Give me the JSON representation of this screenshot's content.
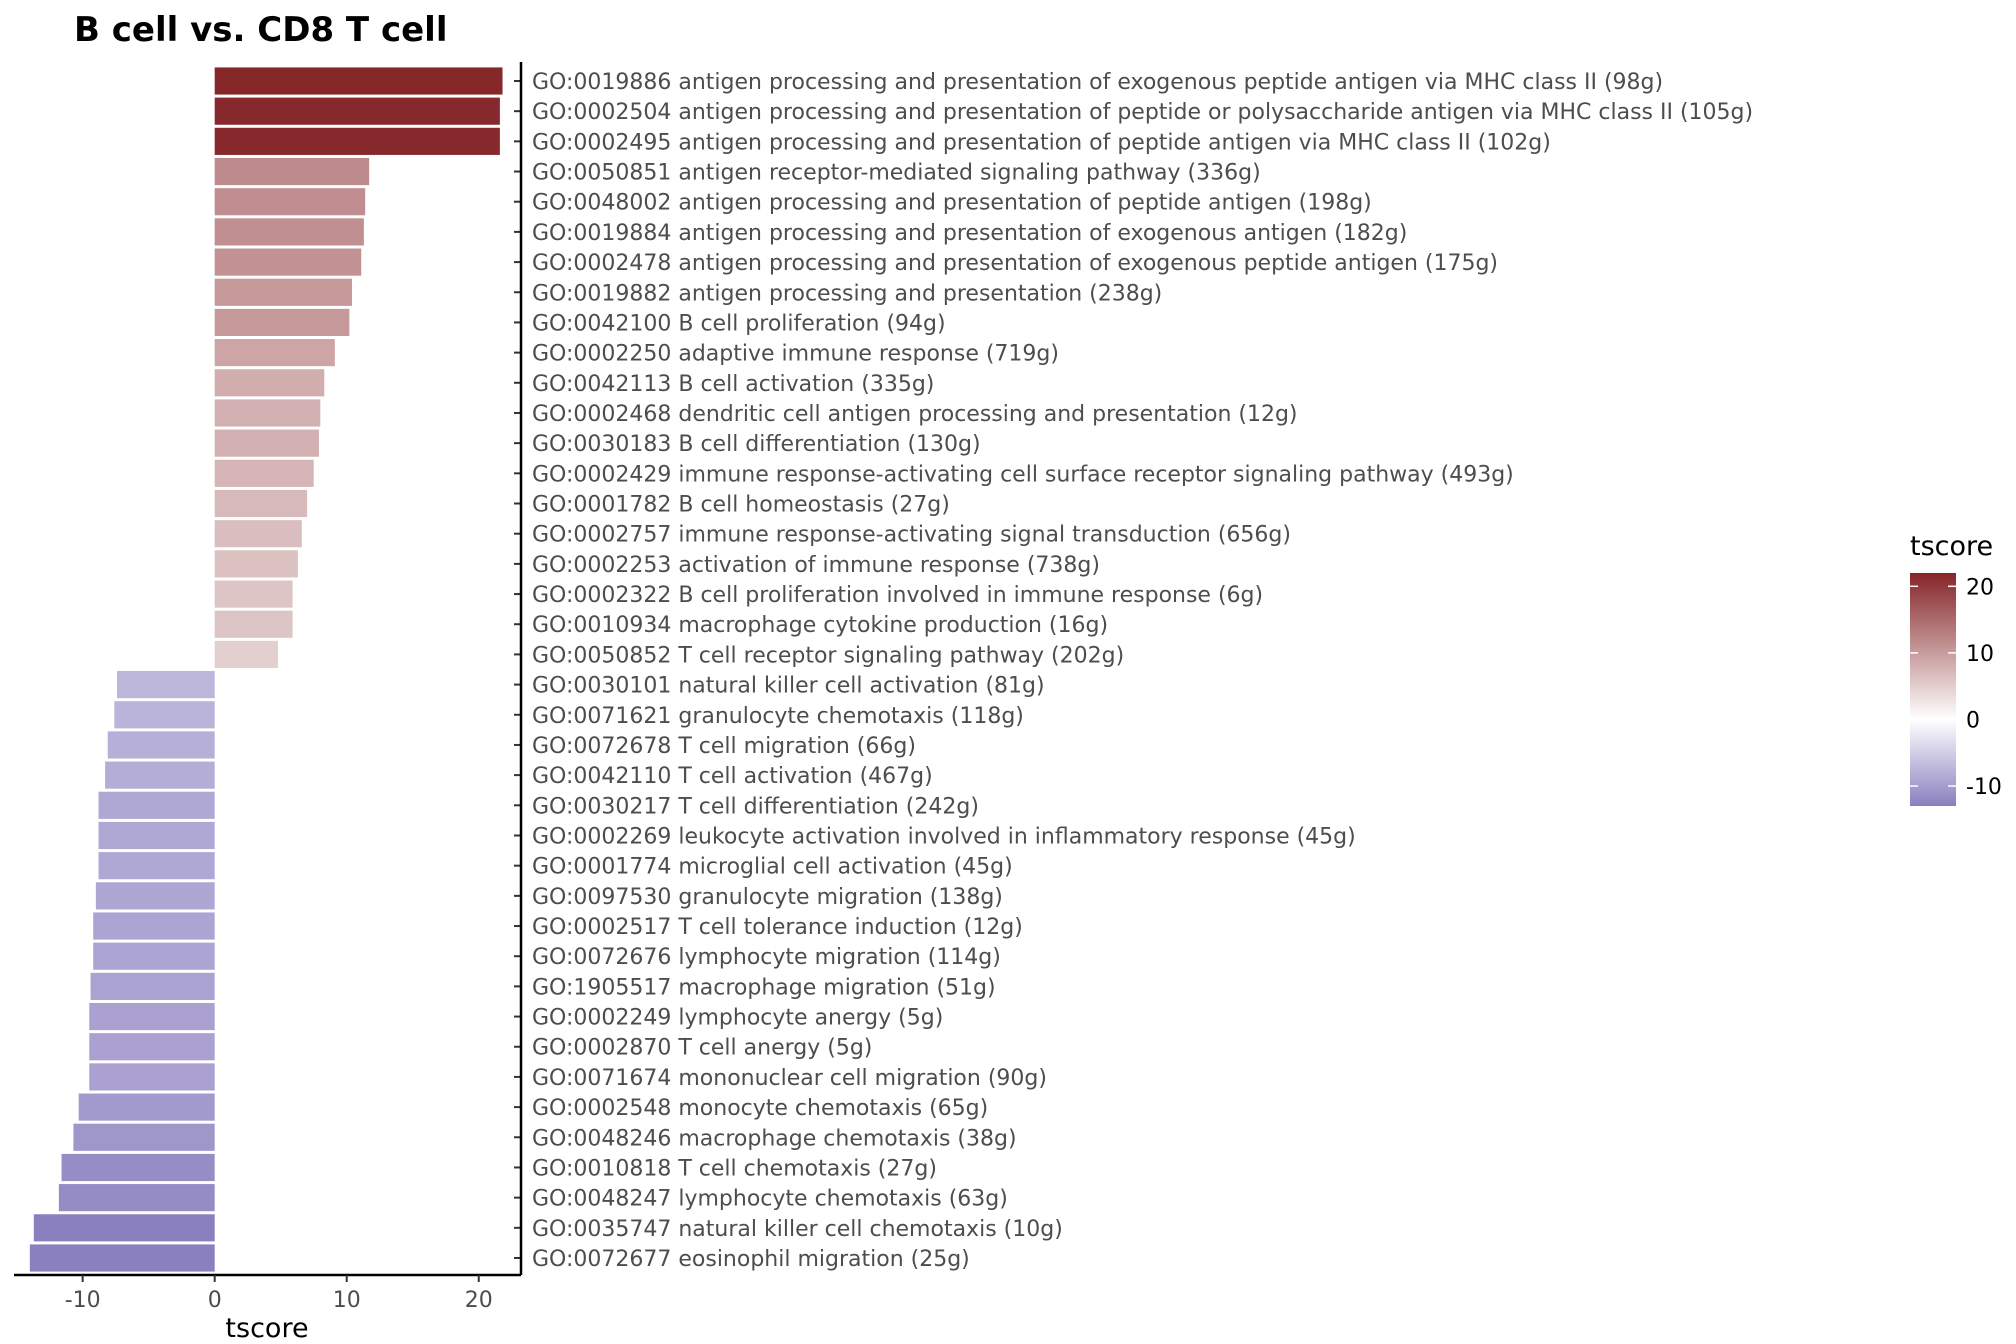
{
  "chart_data": {
    "type": "bar",
    "orientation": "horizontal",
    "title": "B cell vs. CD8 T cell",
    "xlabel": "tscore",
    "ylabel": "",
    "xlim": [
      -15.2,
      23.2
    ],
    "x_ticks": [
      -10,
      0,
      10,
      20
    ],
    "x_tick_labels": [
      "-10",
      "0",
      "10",
      "20"
    ],
    "grid": false,
    "categories": [
      "GO:0019886 antigen processing and presentation of exogenous peptide antigen via MHC class II (98g)",
      "GO:0002504 antigen processing and presentation of peptide or polysaccharide antigen via MHC class II (105g)",
      "GO:0002495 antigen processing and presentation of peptide antigen via MHC class II (102g)",
      "GO:0050851 antigen receptor-mediated signaling pathway (336g)",
      "GO:0048002 antigen processing and presentation of peptide antigen (198g)",
      "GO:0019884 antigen processing and presentation of exogenous antigen (182g)",
      "GO:0002478 antigen processing and presentation of exogenous peptide antigen (175g)",
      "GO:0019882 antigen processing and presentation (238g)",
      "GO:0042100 B cell proliferation (94g)",
      "GO:0002250 adaptive immune response (719g)",
      "GO:0042113 B cell activation (335g)",
      "GO:0002468 dendritic cell antigen processing and presentation (12g)",
      "GO:0030183 B cell differentiation (130g)",
      "GO:0002429 immune response-activating cell surface receptor signaling pathway (493g)",
      "GO:0001782 B cell homeostasis (27g)",
      "GO:0002757 immune response-activating signal transduction (656g)",
      "GO:0002253 activation of immune response (738g)",
      "GO:0002322 B cell proliferation involved in immune response (6g)",
      "GO:0010934 macrophage cytokine production (16g)",
      "GO:0050852 T cell receptor signaling pathway (202g)",
      "GO:0030101 natural killer cell activation (81g)",
      "GO:0071621 granulocyte chemotaxis (118g)",
      "GO:0072678 T cell migration (66g)",
      "GO:0042110 T cell activation (467g)",
      "GO:0030217 T cell differentiation (242g)",
      "GO:0002269 leukocyte activation involved in inflammatory response (45g)",
      "GO:0001774 microglial cell activation (45g)",
      "GO:0097530 granulocyte migration (138g)",
      "GO:0002517 T cell tolerance induction (12g)",
      "GO:0072676 lymphocyte migration (114g)",
      "GO:1905517 macrophage migration (51g)",
      "GO:0002249 lymphocyte anergy (5g)",
      "GO:0002870 T cell anergy (5g)",
      "GO:0071674 mononuclear cell migration (90g)",
      "GO:0002548 monocyte chemotaxis (65g)",
      "GO:0048246 macrophage chemotaxis (38g)",
      "GO:0010818 T cell chemotaxis (27g)",
      "GO:0048247 lymphocyte chemotaxis (63g)",
      "GO:0035747 natural killer cell chemotaxis (10g)",
      "GO:0072677 eosinophil migration (25g)"
    ],
    "values": [
      21.8,
      21.6,
      21.6,
      11.7,
      11.4,
      11.3,
      11.1,
      10.4,
      10.2,
      9.1,
      8.3,
      8.0,
      7.9,
      7.5,
      7.0,
      6.6,
      6.3,
      5.9,
      5.9,
      4.8,
      -7.4,
      -7.6,
      -8.1,
      -8.3,
      -8.8,
      -8.8,
      -8.8,
      -9.0,
      -9.2,
      -9.2,
      -9.4,
      -9.5,
      -9.5,
      -9.5,
      -10.3,
      -10.7,
      -11.6,
      -11.8,
      -13.7,
      -14.0
    ],
    "legend": {
      "title": "tscore",
      "placement": "right",
      "type": "gradient",
      "min": -13,
      "max": 22,
      "ticks": [
        20,
        10,
        0,
        -10
      ],
      "tick_labels": [
        "20",
        "10",
        "0",
        "-10"
      ],
      "colors": {
        "low": "#8a7fbf",
        "mid": "#ffffff",
        "high": "#852528"
      }
    }
  }
}
